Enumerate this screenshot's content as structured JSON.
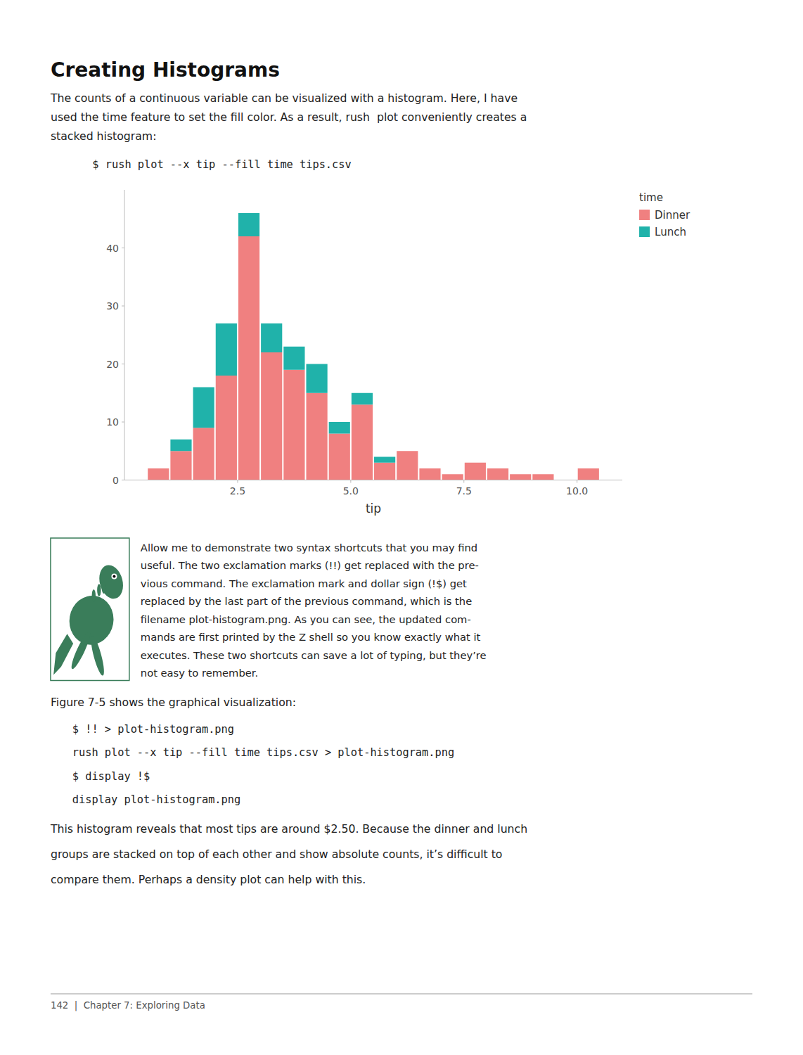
{
  "chart_data": {
    "type": "histogram",
    "title": "Creating Histograms",
    "x_label": "tip",
    "stacked": true,
    "grid": false,
    "legend": "right",
    "legend_title": "time",
    "bins": [
      0.5,
      1.0,
      1.5,
      2.0,
      2.5,
      3.0,
      3.5,
      4.0,
      4.5,
      5.0,
      5.5,
      6.0,
      6.5,
      7.0,
      7.5,
      8.0,
      8.5,
      9.0,
      9.5,
      10.0,
      10.5
    ],
    "series": [
      {
        "name": "Dinner",
        "color": "#F08080",
        "values": [
          2,
          5,
          9,
          18,
          42,
          22,
          19,
          15,
          8,
          13,
          3,
          5,
          2,
          1,
          3,
          2,
          1,
          1,
          0,
          2
        ]
      },
      {
        "name": "Lunch",
        "color": "#20B2AA",
        "values": [
          0,
          2,
          7,
          9,
          4,
          5,
          4,
          5,
          2,
          2,
          1,
          0,
          0,
          0,
          0,
          0,
          0,
          0,
          0,
          0
        ]
      }
    ],
    "xlim": [
      0,
      11
    ],
    "ylim": [
      0,
      50
    ],
    "xticks": [
      2.5,
      {
        "value": 5.0,
        "label": "5.0"
      },
      7.5,
      {
        "value": 10.0,
        "label": "10.0"
      }
    ],
    "yticks": [
      0,
      10,
      20,
      30,
      40
    ],
    "annotations": [
      "The counts of a continuous variable can be visualized with a histogram. Here, I have",
      "used the time feature to set the fill color. As a result, rush  plot conveniently creates a",
      "stacked histogram:",
      "$ rush plot --x tip --fill time tips.csv",
      "Allow me to demonstrate two syntax shortcuts that you may find",
      "useful. The two exclamation marks (!!) get replaced with the pre-",
      "vious command. The exclamation mark and dollar sign (!$) get",
      "replaced by the last part of the previous command, which is the",
      "filename plot-histogram.png. As you can see, the updated com-",
      "mands are first printed by the Z shell so you know exactly what it",
      "executes. These two shortcuts can save a lot of typing, but they’re",
      "not easy to remember.",
      "Figure 7-5 shows the graphical visualization:",
      "$ !! > plot-histogram.png",
      "rush plot --x tip --fill time tips.csv > plot-histogram.png",
      "$ display !$",
      "display plot-histogram.png",
      "This histogram reveals that most tips are around $2.50. Because the dinner and lunch",
      "groups are stacked on top of each other and show absolute counts, it’s difficult to",
      "compare them. Perhaps a density plot can help with this.",
      "142  |  Chapter 7: Exploring Data"
    ]
  }
}
